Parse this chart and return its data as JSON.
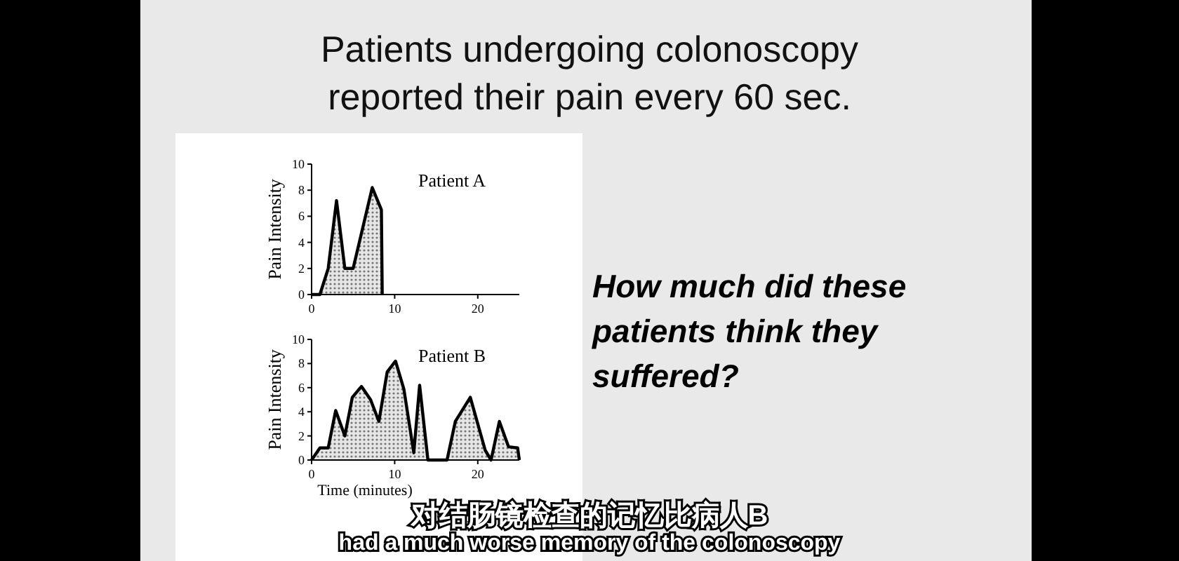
{
  "chart_data": [
    {
      "type": "other",
      "title": "Patients undergoing colonoscopy reported their pain every 60 sec.",
      "annotations": [
        "How much did these patients think they suffered?",
        "对结肠镜检查的记忆比病人B",
        "had a much worse memory of the colonoscopy"
      ]
    },
    {
      "type": "area",
      "title": "Patient A",
      "ylabel": "Pain Intensity",
      "xlim": [
        0,
        25
      ],
      "xticks": [
        0,
        10,
        20
      ],
      "ylim": [
        0,
        10
      ],
      "yticks": [
        0,
        2,
        4,
        6,
        8,
        10
      ],
      "series": [
        {
          "color": "#000000",
          "x": [
            0,
            1,
            2,
            3,
            4,
            5,
            7.3,
            8.4,
            8.5
          ],
          "values": [
            0,
            0,
            2,
            7.2,
            2,
            2,
            8.2,
            6.5,
            0
          ]
        }
      ]
    },
    {
      "type": "area",
      "title": "Patient B",
      "ylabel": "Pain Intensity",
      "xlabel": "Time (minutes)",
      "xlim": [
        0,
        25
      ],
      "xticks": [
        0,
        10,
        20
      ],
      "ylim": [
        0,
        10
      ],
      "yticks": [
        0,
        2,
        4,
        6,
        8,
        10
      ],
      "series": [
        {
          "color": "#000000",
          "x": [
            0,
            1,
            2,
            2.9,
            4,
            4.9,
            6,
            7.1,
            8.1,
            9.1,
            10.1,
            11.1,
            12.3,
            13,
            14,
            16.3,
            17.3,
            19.1,
            20.9,
            21.6,
            22.6,
            23.7,
            24.8,
            25
          ],
          "values": [
            0,
            1,
            1,
            4.1,
            2,
            5.2,
            6.1,
            5,
            3.2,
            7.3,
            8.2,
            5.9,
            0.6,
            6.2,
            0,
            0,
            3.2,
            5.2,
            0.8,
            0,
            3.2,
            1.1,
            1,
            0
          ]
        }
      ]
    }
  ]
}
